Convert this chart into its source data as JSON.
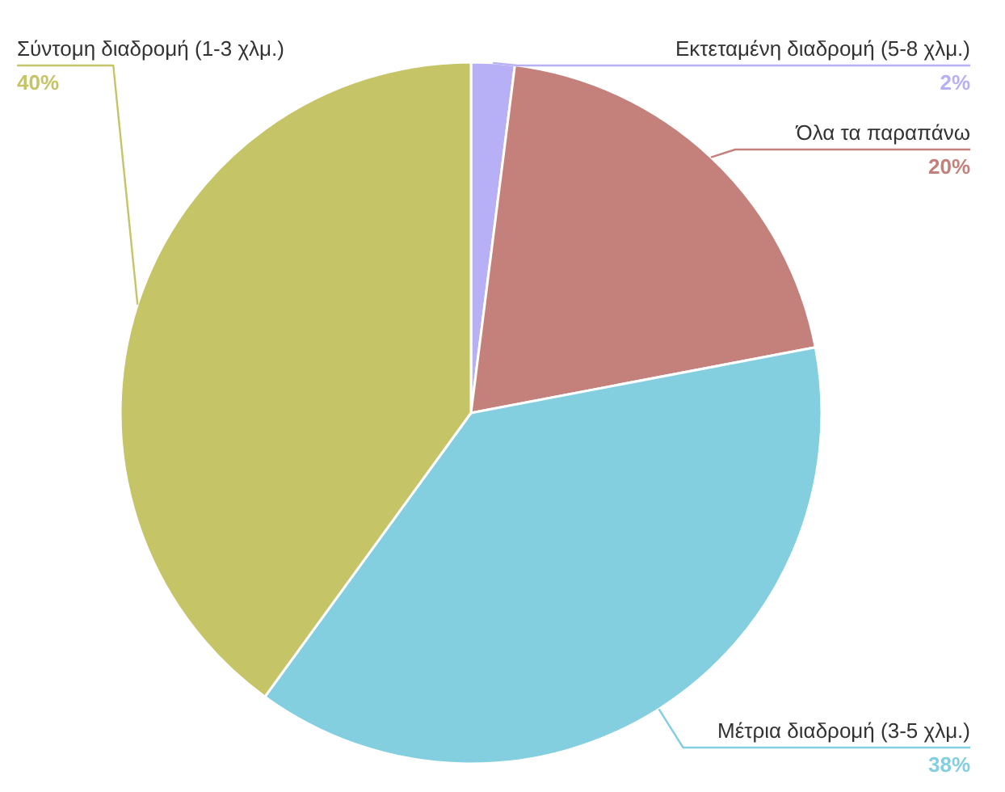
{
  "chart_data": {
    "type": "pie",
    "categories": [
      "Εκτεταμένη διαδρομή (5-8 χλμ.)",
      "Όλα τα παραπάνω",
      "Μέτρια διαδρομή (3-5 χλμ.)",
      "Σύντομη διαδρομή (1-3 χλμ.)"
    ],
    "values": [
      2,
      20,
      38,
      40
    ],
    "colors": [
      "#b7b0f7",
      "#c4817c",
      "#83cfe0",
      "#c5c466"
    ],
    "value_labels": [
      "2%",
      "20%",
      "38%",
      "40%"
    ]
  }
}
